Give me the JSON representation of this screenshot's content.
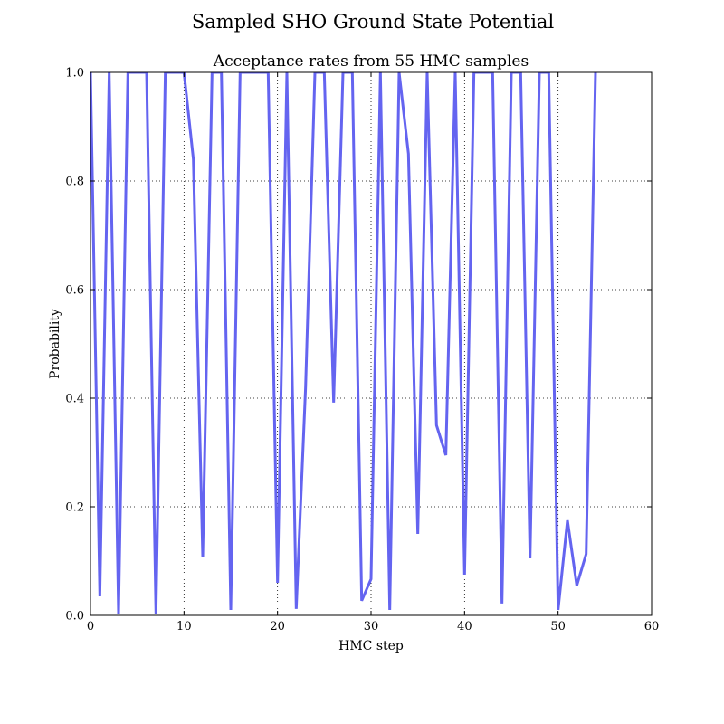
{
  "figure": {
    "suptitle": "Sampled SHO Ground State Potential"
  },
  "chart_data": {
    "type": "line",
    "title": "Acceptance rates from 55 HMC samples",
    "xlabel": "HMC step",
    "ylabel": "Probability",
    "xlim": [
      0,
      60
    ],
    "ylim": [
      0.0,
      1.0
    ],
    "x_ticks": [
      0,
      10,
      20,
      30,
      40,
      50,
      60
    ],
    "x_tick_labels": [
      "0",
      "10",
      "20",
      "30",
      "40",
      "50",
      "60"
    ],
    "y_ticks": [
      0.0,
      0.2,
      0.4,
      0.6,
      0.8,
      1.0
    ],
    "y_tick_labels": [
      "0.0",
      "0.2",
      "0.4",
      "0.6",
      "0.8",
      "1.0"
    ],
    "grid": true,
    "series": [
      {
        "color": "#6464f0",
        "x": [
          0,
          1,
          2,
          3,
          4,
          5,
          6,
          7,
          8,
          9,
          10,
          11,
          12,
          13,
          14,
          15,
          16,
          17,
          18,
          19,
          20,
          21,
          22,
          23,
          24,
          25,
          26,
          27,
          28,
          29,
          30,
          31,
          32,
          33,
          34,
          35,
          36,
          37,
          38,
          39,
          40,
          41,
          42,
          43,
          44,
          45,
          46,
          47,
          48,
          49,
          50,
          51,
          52,
          53,
          54
        ],
        "y": [
          1.0,
          0.035,
          1.0,
          0.002,
          1.0,
          1.0,
          1.0,
          0.002,
          1.0,
          1.0,
          1.0,
          0.84,
          0.108,
          1.0,
          1.0,
          0.01,
          1.0,
          1.0,
          1.0,
          1.0,
          0.06,
          1.0,
          0.012,
          0.42,
          1.0,
          1.0,
          0.392,
          1.0,
          1.0,
          0.027,
          0.067,
          1.0,
          0.01,
          1.0,
          0.85,
          0.15,
          1.0,
          0.35,
          0.295,
          1.0,
          0.075,
          1.0,
          1.0,
          1.0,
          0.022,
          1.0,
          1.0,
          0.105,
          1.0,
          1.0,
          0.01,
          0.175,
          0.055,
          0.113,
          1.0
        ]
      }
    ]
  }
}
